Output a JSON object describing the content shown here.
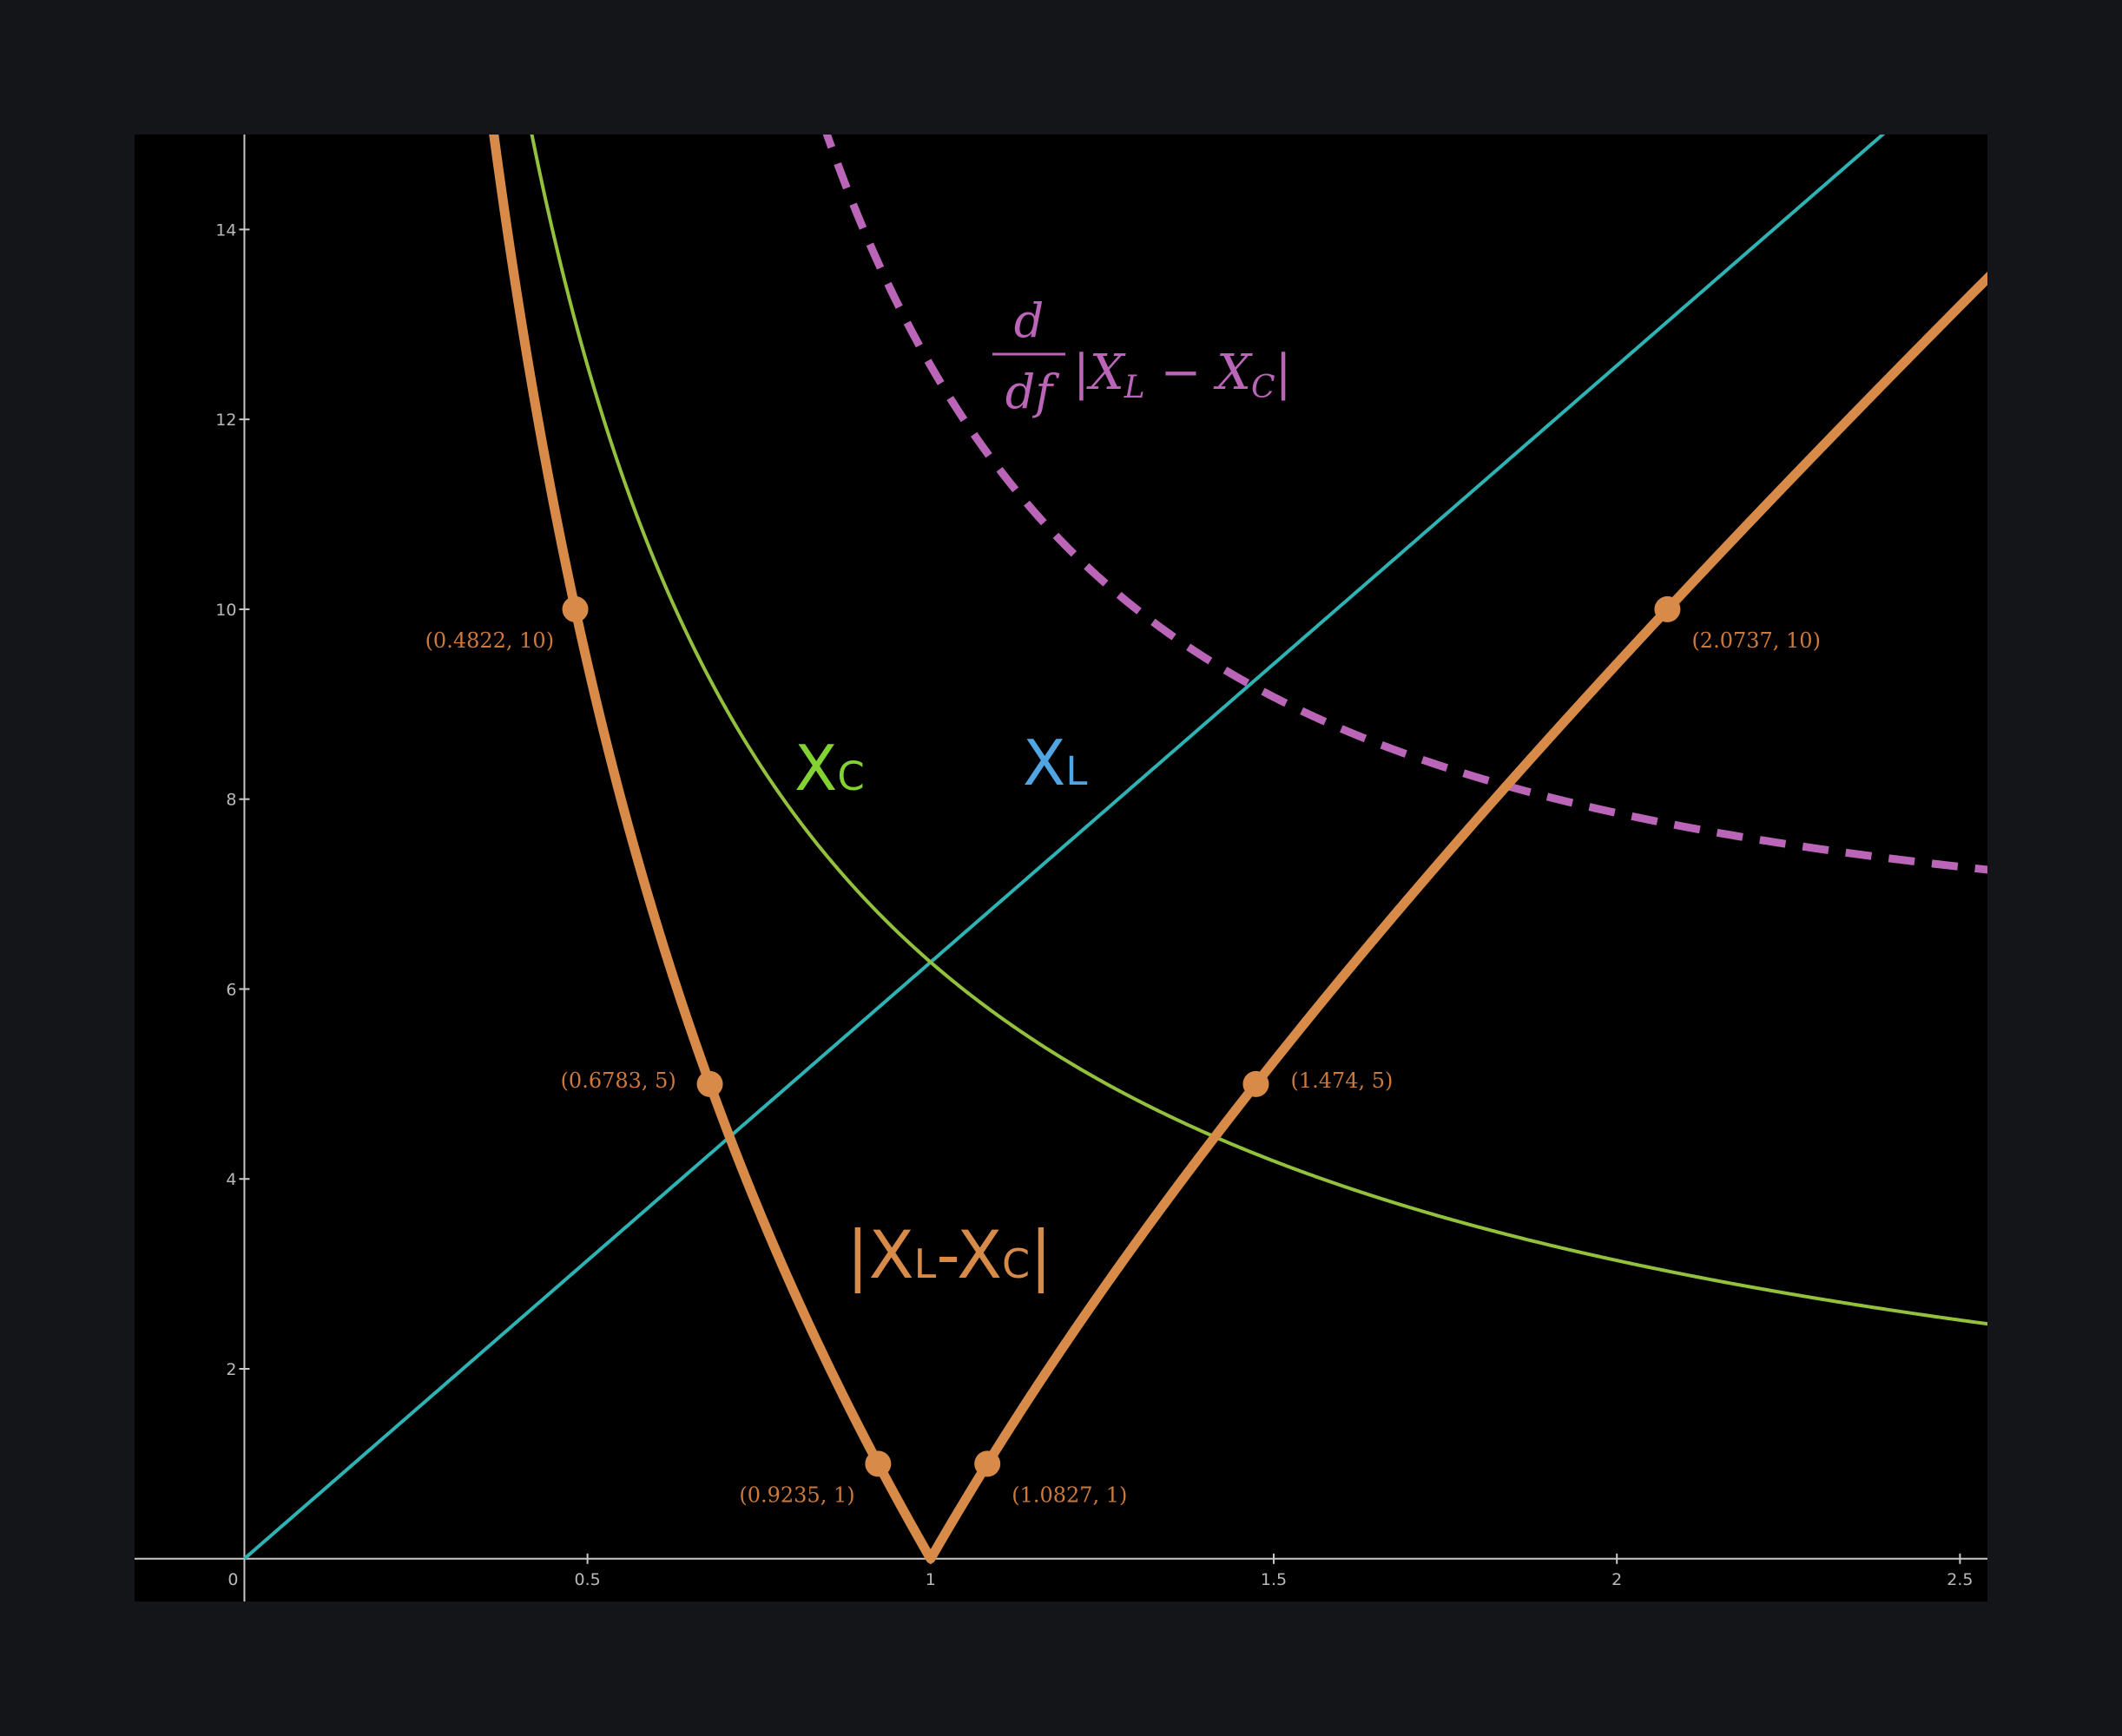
{
  "chart_data": {
    "type": "line",
    "title": "",
    "xlabel": "",
    "ylabel": "",
    "xlim": [
      -0.16,
      2.54
    ],
    "ylim": [
      -0.45,
      15
    ],
    "grid": false,
    "x_ticks": [
      {
        "value": 0,
        "label": "0"
      },
      {
        "value": 0.5,
        "label": "0.5"
      },
      {
        "value": 1,
        "label": "1"
      },
      {
        "value": 1.5,
        "label": "1.5"
      },
      {
        "value": 2,
        "label": "2"
      },
      {
        "value": 2.5,
        "label": "2.5"
      }
    ],
    "y_ticks": [
      {
        "value": 2,
        "label": "2"
      },
      {
        "value": 4,
        "label": "4"
      },
      {
        "value": 6,
        "label": "6"
      },
      {
        "value": 8,
        "label": "8"
      },
      {
        "value": 10,
        "label": "10"
      },
      {
        "value": 12,
        "label": "12"
      },
      {
        "value": 14,
        "label": "14"
      }
    ],
    "colors": {
      "xl": "#2fb2b4",
      "xc": "#93c13e",
      "diff": "#d88a48",
      "deriv": "#bb65b8",
      "label_xl": "#4fa6e2",
      "label_xc": "#82d233",
      "point_label": "#cc7a3c"
    },
    "series": [
      {
        "key": "xl",
        "name": "XL",
        "sub": "L",
        "function": "2*pi*f",
        "domain": [
          0,
          2.6
        ]
      },
      {
        "key": "xc",
        "name": "XC",
        "sub": "C",
        "function": "2*pi/f",
        "domain": [
          0.05,
          2.6
        ]
      },
      {
        "key": "diff",
        "name": "|XL-XC|",
        "function": "|2*pi*f - 2*pi/f|",
        "domain": [
          0.05,
          2.6
        ]
      },
      {
        "key": "deriv",
        "function": "d/df |XL - XC|",
        "domain": [
          0.3,
          2.6
        ],
        "style": "dashed"
      }
    ],
    "labels": {
      "xl": {
        "main": "X",
        "sub": "L"
      },
      "xc": {
        "main": "X",
        "sub": "C"
      },
      "diff": {
        "open": "|X",
        "sub1": "L",
        "mid": "-X",
        "sub2": "C",
        "close": "|"
      },
      "deriv": {
        "num": "d",
        "den": "df",
        "expr_open": "|X",
        "expr_sub1": "L",
        "expr_mid": " − X",
        "expr_sub2": "C",
        "expr_close": "|"
      }
    },
    "points": [
      {
        "x": 0.4822,
        "y": 10,
        "label": "(0.4822, 10)"
      },
      {
        "x": 2.0737,
        "y": 10,
        "label": "(2.0737, 10)"
      },
      {
        "x": 0.6783,
        "y": 5,
        "label": "(0.6783, 5)"
      },
      {
        "x": 1.474,
        "y": 5,
        "label": "(1.474, 5)"
      },
      {
        "x": 0.9235,
        "y": 1,
        "label": "(0.9235, 1)"
      },
      {
        "x": 1.0827,
        "y": 1,
        "label": "(1.0827, 1)"
      }
    ]
  }
}
